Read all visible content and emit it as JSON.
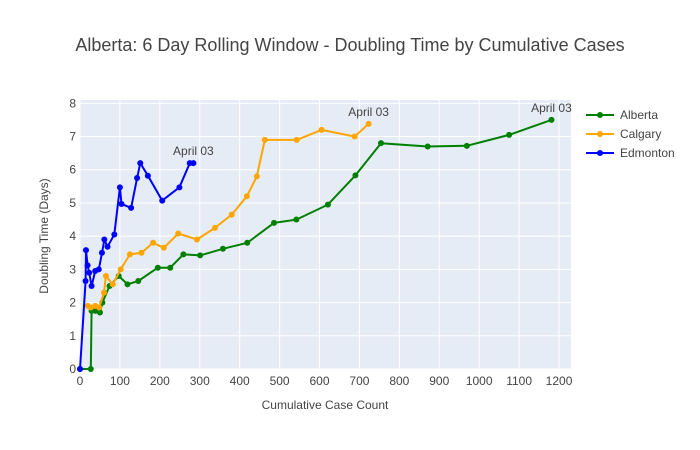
{
  "chart_data": {
    "type": "line",
    "title": "Alberta: 6 Day Rolling Window - Doubling Time by Cumulative Cases",
    "xlabel": "Cumulative Case Count",
    "ylabel": "Doubling Time (Days)",
    "xlim": [
      0,
      1230
    ],
    "ylim": [
      0,
      8.1
    ],
    "xticks": [
      0,
      100,
      200,
      300,
      400,
      500,
      600,
      700,
      800,
      900,
      1000,
      1100,
      1200
    ],
    "yticks": [
      0,
      1,
      2,
      3,
      4,
      5,
      6,
      7,
      8
    ],
    "grid": true,
    "legend_position": "right",
    "series": [
      {
        "name": "Alberta",
        "color": "#008000",
        "x": [
          0,
          27,
          29,
          39,
          50,
          56,
          74,
          97,
          119,
          146,
          195,
          226,
          259,
          301,
          358,
          419,
          486,
          542,
          621,
          690,
          754,
          871,
          969,
          1075,
          1181
        ],
        "y": [
          0,
          0,
          1.75,
          1.75,
          1.7,
          2.0,
          2.5,
          2.8,
          2.55,
          2.65,
          3.05,
          3.05,
          3.45,
          3.42,
          3.62,
          3.8,
          4.4,
          4.5,
          4.95,
          5.83,
          6.8,
          6.7,
          6.72,
          7.05,
          7.5
        ]
      },
      {
        "name": "Calgary",
        "color": "#FFA500",
        "x": [
          19,
          27,
          38,
          48,
          60,
          65,
          82,
          102,
          125,
          154,
          183,
          210,
          246,
          293,
          338,
          380,
          418,
          443,
          463,
          543,
          605,
          688,
          723
        ],
        "y": [
          1.9,
          1.85,
          1.9,
          1.85,
          2.3,
          2.8,
          2.55,
          3.0,
          3.45,
          3.5,
          3.8,
          3.65,
          4.08,
          3.9,
          4.25,
          4.65,
          5.2,
          5.8,
          6.9,
          6.9,
          7.2,
          7.0,
          7.38
        ]
      },
      {
        "name": "Edmonton",
        "color": "#0000FF",
        "x": [
          0,
          14,
          15,
          19,
          23,
          29,
          38,
          47,
          55,
          61,
          69,
          86,
          100,
          104,
          128,
          143,
          151,
          170,
          206,
          249,
          275,
          284
        ],
        "y": [
          0,
          2.65,
          3.58,
          3.12,
          2.9,
          2.5,
          2.95,
          3.0,
          3.5,
          3.9,
          3.68,
          4.05,
          5.47,
          4.97,
          4.85,
          5.75,
          6.2,
          5.82,
          5.07,
          5.47,
          6.2,
          6.2
        ]
      }
    ],
    "annotations": [
      {
        "text": "April 03",
        "x": 284,
        "y": 6.2,
        "series": "Edmonton"
      },
      {
        "text": "April 03",
        "x": 723,
        "y": 7.38,
        "series": "Calgary"
      },
      {
        "text": "April 03",
        "x": 1181,
        "y": 7.5,
        "series": "Alberta"
      }
    ]
  }
}
